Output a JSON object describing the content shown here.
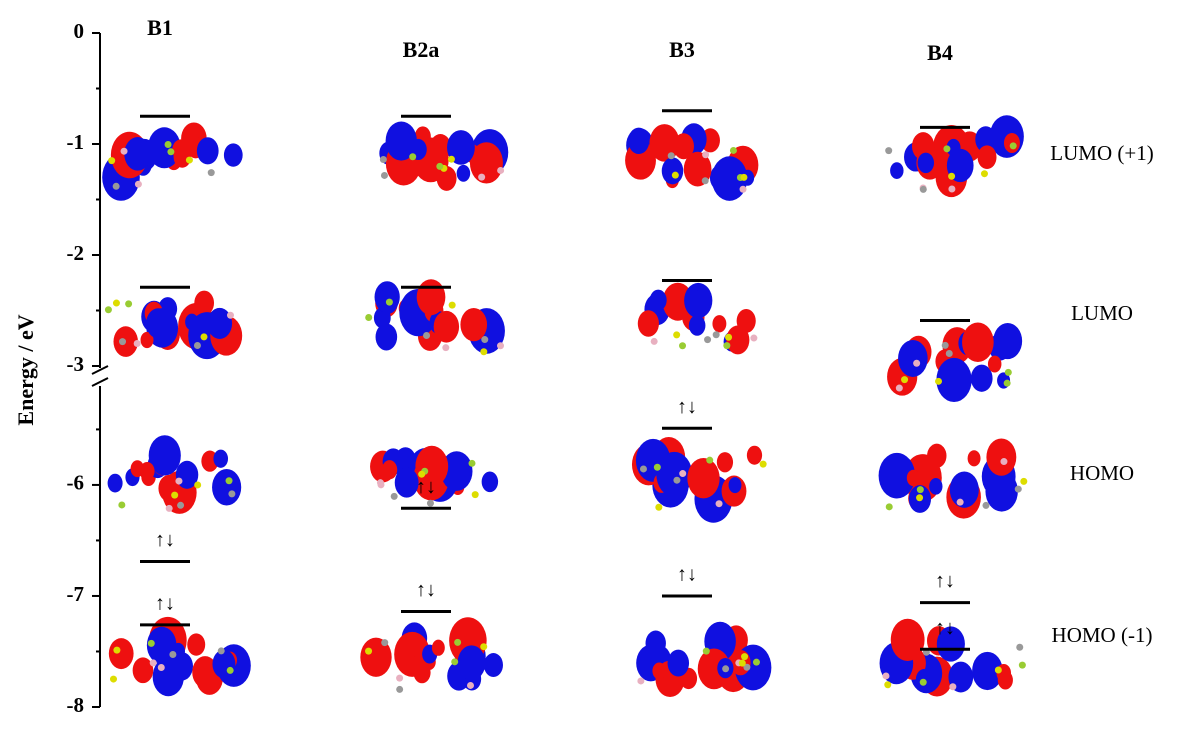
{
  "chart_data": {
    "type": "energy-levels",
    "y_label": "Energy / eV",
    "segments": [
      {
        "ylim": [
          -3,
          0
        ],
        "yticks": [
          0,
          -1,
          -2,
          -3
        ],
        "minor_yticks": [
          -0.5,
          -1.5,
          -2.5
        ]
      },
      {
        "ylim": [
          -8,
          -5.1
        ],
        "yticks": [
          -6,
          -7,
          -8
        ],
        "minor_yticks": [
          -5.5,
          -6.5,
          -7.5
        ]
      }
    ],
    "orbitals": [
      "LUMO (+1)",
      "LUMO",
      "HOMO",
      "HOMO (-1)"
    ],
    "series": [
      {
        "name": "B1",
        "values": [
          -0.75,
          -2.29,
          -6.69,
          -7.26
        ],
        "electrons": [
          null,
          null,
          "↑↓",
          "↑↓"
        ]
      },
      {
        "name": "B2a",
        "values": [
          -0.75,
          -2.29,
          -6.21,
          -7.14
        ],
        "electrons": [
          null,
          null,
          "↑↓",
          "↑↓"
        ]
      },
      {
        "name": "B3",
        "values": [
          -0.7,
          -2.23,
          -5.49,
          -7.0
        ],
        "electrons": [
          null,
          null,
          "↑↓",
          "↑↓"
        ]
      },
      {
        "name": "B4",
        "values": [
          -0.85,
          -2.59,
          -7.06,
          -7.48
        ],
        "electrons": [
          null,
          null,
          "↑↓",
          "↑↓"
        ]
      }
    ]
  }
}
